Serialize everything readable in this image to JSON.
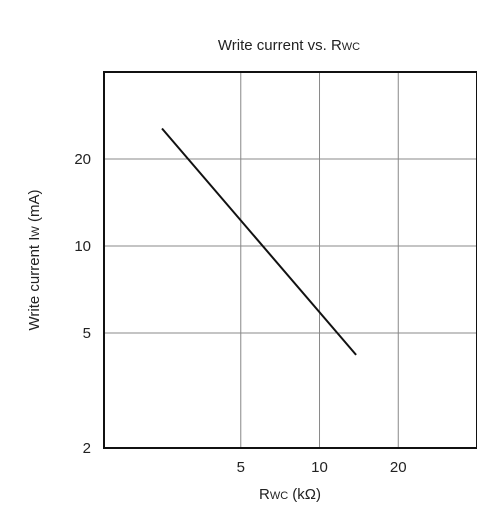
{
  "chart_data": {
    "type": "line",
    "title": "Write current vs. Rwc",
    "title_parts": {
      "main": "Write current vs. R",
      "sub": "WC"
    },
    "xlabel": "Rwc (kΩ)",
    "xlabel_parts": {
      "main": "R",
      "sub": "WC",
      "rest": " (kΩ)"
    },
    "ylabel": "Write current Iw (mA)",
    "ylabel_parts": {
      "main": "Write current I",
      "sub": "W",
      "rest": " (mA)"
    },
    "x_scale": "log",
    "y_scale": "log",
    "xlim": [
      1.5,
      40
    ],
    "ylim": [
      2,
      40
    ],
    "x_ticks": [
      5,
      10,
      20
    ],
    "x_tick_labels": [
      "5",
      "10",
      "20"
    ],
    "y_ticks": [
      2,
      5,
      10,
      20
    ],
    "y_tick_labels": [
      "2",
      "5",
      "10",
      "20"
    ],
    "grid": true,
    "series": [
      {
        "x": [
          2.5,
          13.8
        ],
        "y": [
          25.5,
          4.2
        ]
      }
    ]
  }
}
